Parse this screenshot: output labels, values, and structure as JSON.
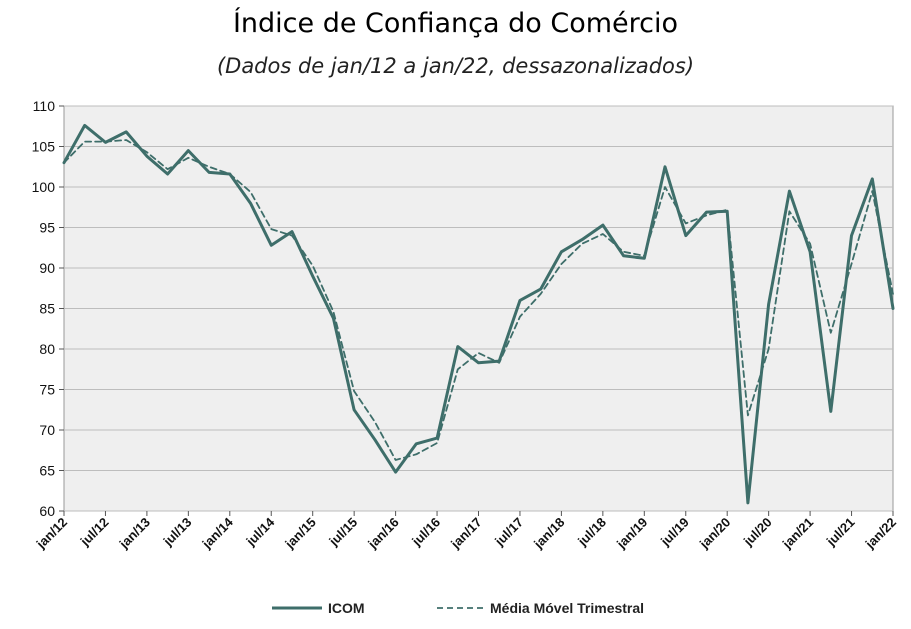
{
  "chart_data": {
    "type": "line",
    "title": "Índice de Confiança do Comércio",
    "subtitle": "(Dados de jan/12 a jan/22, dessazonalizados)",
    "xlabel": "",
    "ylabel": "",
    "ylim": [
      60,
      110
    ],
    "yticks": [
      60,
      65,
      70,
      75,
      80,
      85,
      90,
      95,
      100,
      105,
      110
    ],
    "grid": true,
    "legend_position": "bottom",
    "x": [
      "2012-01",
      "2012-04",
      "2012-07",
      "2012-10",
      "2013-01",
      "2013-04",
      "2013-07",
      "2013-10",
      "2014-01",
      "2014-04",
      "2014-07",
      "2014-10",
      "2015-01",
      "2015-04",
      "2015-07",
      "2015-10",
      "2016-01",
      "2016-04",
      "2016-07",
      "2016-10",
      "2017-01",
      "2017-04",
      "2017-07",
      "2017-10",
      "2018-01",
      "2018-04",
      "2018-07",
      "2018-10",
      "2019-01",
      "2019-04",
      "2019-07",
      "2019-10",
      "2020-01",
      "2020-04",
      "2020-07",
      "2020-10",
      "2021-01",
      "2021-04",
      "2021-07",
      "2021-10",
      "2022-01"
    ],
    "xtick_labels": [
      "jan/12",
      "jul/12",
      "jan/13",
      "jul/13",
      "jan/14",
      "jul/14",
      "jan/15",
      "jul/15",
      "jan/16",
      "jul/16",
      "jan/17",
      "jul/17",
      "jan/18",
      "jul/18",
      "jan/19",
      "jul/19",
      "jan/20",
      "jul/20",
      "jan/21",
      "jul/21",
      "jan/22"
    ],
    "series": [
      {
        "name": "ICOM",
        "style": "solid",
        "color": "#3e6e6a",
        "values": [
          103.0,
          107.6,
          105.5,
          106.8,
          103.8,
          101.6,
          104.5,
          101.8,
          101.6,
          98.0,
          92.8,
          94.5,
          89.0,
          83.8,
          72.5,
          68.8,
          64.8,
          68.3,
          69.0,
          80.3,
          78.3,
          78.5,
          86.0,
          87.4,
          92.0,
          93.5,
          95.3,
          91.5,
          91.2,
          102.5,
          94.0,
          96.9,
          97.0,
          61.0,
          85.5,
          99.5,
          92.0,
          72.3,
          94.0,
          101.0,
          85.0
        ]
      },
      {
        "name": "Média Móvel Trimestral",
        "style": "dashed",
        "color": "#3e6e6a",
        "values": [
          103.0,
          105.6,
          105.6,
          105.8,
          104.3,
          102.2,
          103.6,
          102.5,
          101.6,
          99.4,
          94.8,
          94.0,
          90.3,
          84.6,
          74.8,
          71.0,
          66.3,
          67.0,
          68.4,
          77.5,
          79.5,
          78.3,
          84.0,
          86.8,
          90.5,
          93.0,
          94.2,
          92.0,
          91.5,
          100.0,
          95.5,
          96.5,
          97.2,
          71.8,
          80.0,
          97.0,
          93.0,
          82.0,
          90.5,
          99.5,
          86.8
        ]
      }
    ]
  }
}
